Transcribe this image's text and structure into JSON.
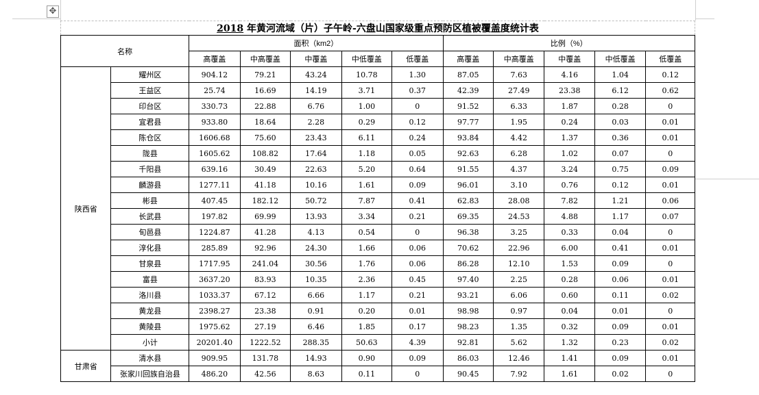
{
  "title": {
    "year": "2018",
    "text": " 年黄河流域（片）子午岭-六盘山国家级重点预防区植被覆盖度统计表"
  },
  "header": {
    "name": "名称",
    "area_group": "面积（km2）",
    "ratio_group": "比例（%）",
    "columns": [
      "高覆盖",
      "中高覆盖",
      "中覆盖",
      "中低覆盖",
      "低覆盖"
    ]
  },
  "groups": [
    {
      "province": "陕西省",
      "rows": [
        {
          "name": "耀州区",
          "area": [
            "904.12",
            "79.21",
            "43.24",
            "10.78",
            "1.30"
          ],
          "ratio": [
            "87.05",
            "7.63",
            "4.16",
            "1.04",
            "0.12"
          ]
        },
        {
          "name": "王益区",
          "area": [
            "25.74",
            "16.69",
            "14.19",
            "3.71",
            "0.37"
          ],
          "ratio": [
            "42.39",
            "27.49",
            "23.38",
            "6.12",
            "0.62"
          ]
        },
        {
          "name": "印台区",
          "area": [
            "330.73",
            "22.88",
            "6.76",
            "1.00",
            "0"
          ],
          "ratio": [
            "91.52",
            "6.33",
            "1.87",
            "0.28",
            "0"
          ]
        },
        {
          "name": "宜君县",
          "area": [
            "933.80",
            "18.64",
            "2.28",
            "0.29",
            "0.12"
          ],
          "ratio": [
            "97.77",
            "1.95",
            "0.24",
            "0.03",
            "0.01"
          ]
        },
        {
          "name": "陈仓区",
          "area": [
            "1606.68",
            "75.60",
            "23.43",
            "6.11",
            "0.24"
          ],
          "ratio": [
            "93.84",
            "4.42",
            "1.37",
            "0.36",
            "0.01"
          ]
        },
        {
          "name": "陇县",
          "area": [
            "1605.62",
            "108.82",
            "17.64",
            "1.18",
            "0.05"
          ],
          "ratio": [
            "92.63",
            "6.28",
            "1.02",
            "0.07",
            "0"
          ]
        },
        {
          "name": "千阳县",
          "area": [
            "639.16",
            "30.49",
            "22.63",
            "5.20",
            "0.64"
          ],
          "ratio": [
            "91.55",
            "4.37",
            "3.24",
            "0.75",
            "0.09"
          ]
        },
        {
          "name": "麟游县",
          "area": [
            "1277.11",
            "41.18",
            "10.16",
            "1.61",
            "0.09"
          ],
          "ratio": [
            "96.01",
            "3.10",
            "0.76",
            "0.12",
            "0.01"
          ]
        },
        {
          "name": "彬县",
          "area": [
            "407.45",
            "182.12",
            "50.72",
            "7.87",
            "0.41"
          ],
          "ratio": [
            "62.83",
            "28.08",
            "7.82",
            "1.21",
            "0.06"
          ]
        },
        {
          "name": "长武县",
          "area": [
            "197.82",
            "69.99",
            "13.93",
            "3.34",
            "0.21"
          ],
          "ratio": [
            "69.35",
            "24.53",
            "4.88",
            "1.17",
            "0.07"
          ]
        },
        {
          "name": "旬邑县",
          "area": [
            "1224.87",
            "41.28",
            "4.13",
            "0.54",
            "0"
          ],
          "ratio": [
            "96.38",
            "3.25",
            "0.33",
            "0.04",
            "0"
          ]
        },
        {
          "name": "淳化县",
          "area": [
            "285.89",
            "92.96",
            "24.30",
            "1.66",
            "0.06"
          ],
          "ratio": [
            "70.62",
            "22.96",
            "6.00",
            "0.41",
            "0.01"
          ]
        },
        {
          "name": "甘泉县",
          "area": [
            "1717.95",
            "241.04",
            "30.56",
            "1.76",
            "0.06"
          ],
          "ratio": [
            "86.28",
            "12.10",
            "1.53",
            "0.09",
            "0"
          ]
        },
        {
          "name": "富县",
          "area": [
            "3637.20",
            "83.93",
            "10.35",
            "2.36",
            "0.45"
          ],
          "ratio": [
            "97.40",
            "2.25",
            "0.28",
            "0.06",
            "0.01"
          ]
        },
        {
          "name": "洛川县",
          "area": [
            "1033.37",
            "67.12",
            "6.66",
            "1.17",
            "0.21"
          ],
          "ratio": [
            "93.21",
            "6.06",
            "0.60",
            "0.11",
            "0.02"
          ]
        },
        {
          "name": "黄龙县",
          "area": [
            "2398.27",
            "23.38",
            "0.91",
            "0.20",
            "0.01"
          ],
          "ratio": [
            "98.98",
            "0.97",
            "0.04",
            "0.01",
            "0"
          ]
        },
        {
          "name": "黄陵县",
          "area": [
            "1975.62",
            "27.19",
            "6.46",
            "1.85",
            "0.17"
          ],
          "ratio": [
            "98.23",
            "1.35",
            "0.32",
            "0.09",
            "0.01"
          ]
        },
        {
          "name": "小计",
          "subtotal": true,
          "area": [
            "20201.40",
            "1222.52",
            "288.35",
            "50.63",
            "4.39"
          ],
          "ratio": [
            "92.81",
            "5.62",
            "1.32",
            "0.23",
            "0.02"
          ]
        }
      ]
    },
    {
      "province": "甘肃省",
      "rows": [
        {
          "name": "清水县",
          "area": [
            "909.95",
            "131.78",
            "14.93",
            "0.90",
            "0.09"
          ],
          "ratio": [
            "86.03",
            "12.46",
            "1.41",
            "0.09",
            "0.01"
          ]
        },
        {
          "name": "张家川回族自治县",
          "area": [
            "486.20",
            "42.56",
            "8.63",
            "0.11",
            "0"
          ],
          "ratio": [
            "90.45",
            "7.92",
            "1.61",
            "0.02",
            "0"
          ]
        }
      ]
    }
  ]
}
